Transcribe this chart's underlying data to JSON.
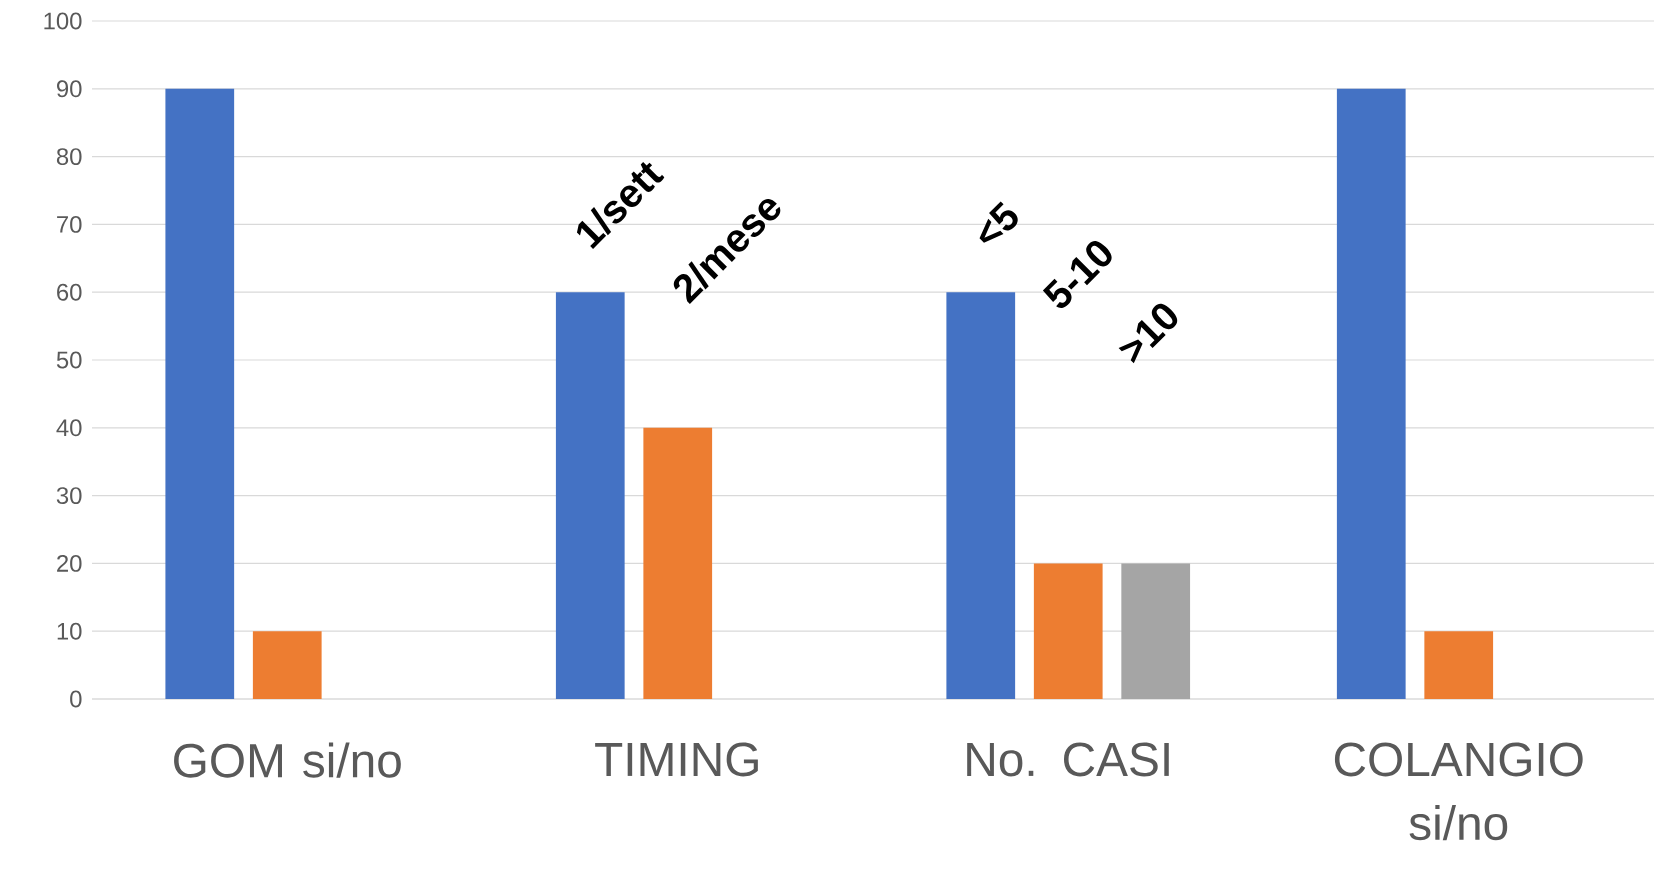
{
  "chart_data": {
    "type": "bar",
    "categories": [
      "GOM si/no",
      "TIMING",
      "No. CASI",
      "COLANGIO si/no"
    ],
    "series": [
      {
        "color": "#4472c4",
        "values": [
          90,
          60,
          60,
          90
        ]
      },
      {
        "color": "#ed7d31",
        "values": [
          10,
          40,
          20,
          10
        ]
      },
      {
        "color": "#a5a5a5",
        "values": [
          null,
          null,
          20,
          null
        ]
      }
    ],
    "ylim": [
      0,
      100
    ],
    "yticks": [
      0,
      10,
      20,
      30,
      40,
      50,
      60,
      70,
      80,
      90,
      100
    ],
    "grid": "y",
    "annotations": [
      "1/sett",
      "2/mese",
      "<5",
      "5-10",
      ">10"
    ]
  }
}
